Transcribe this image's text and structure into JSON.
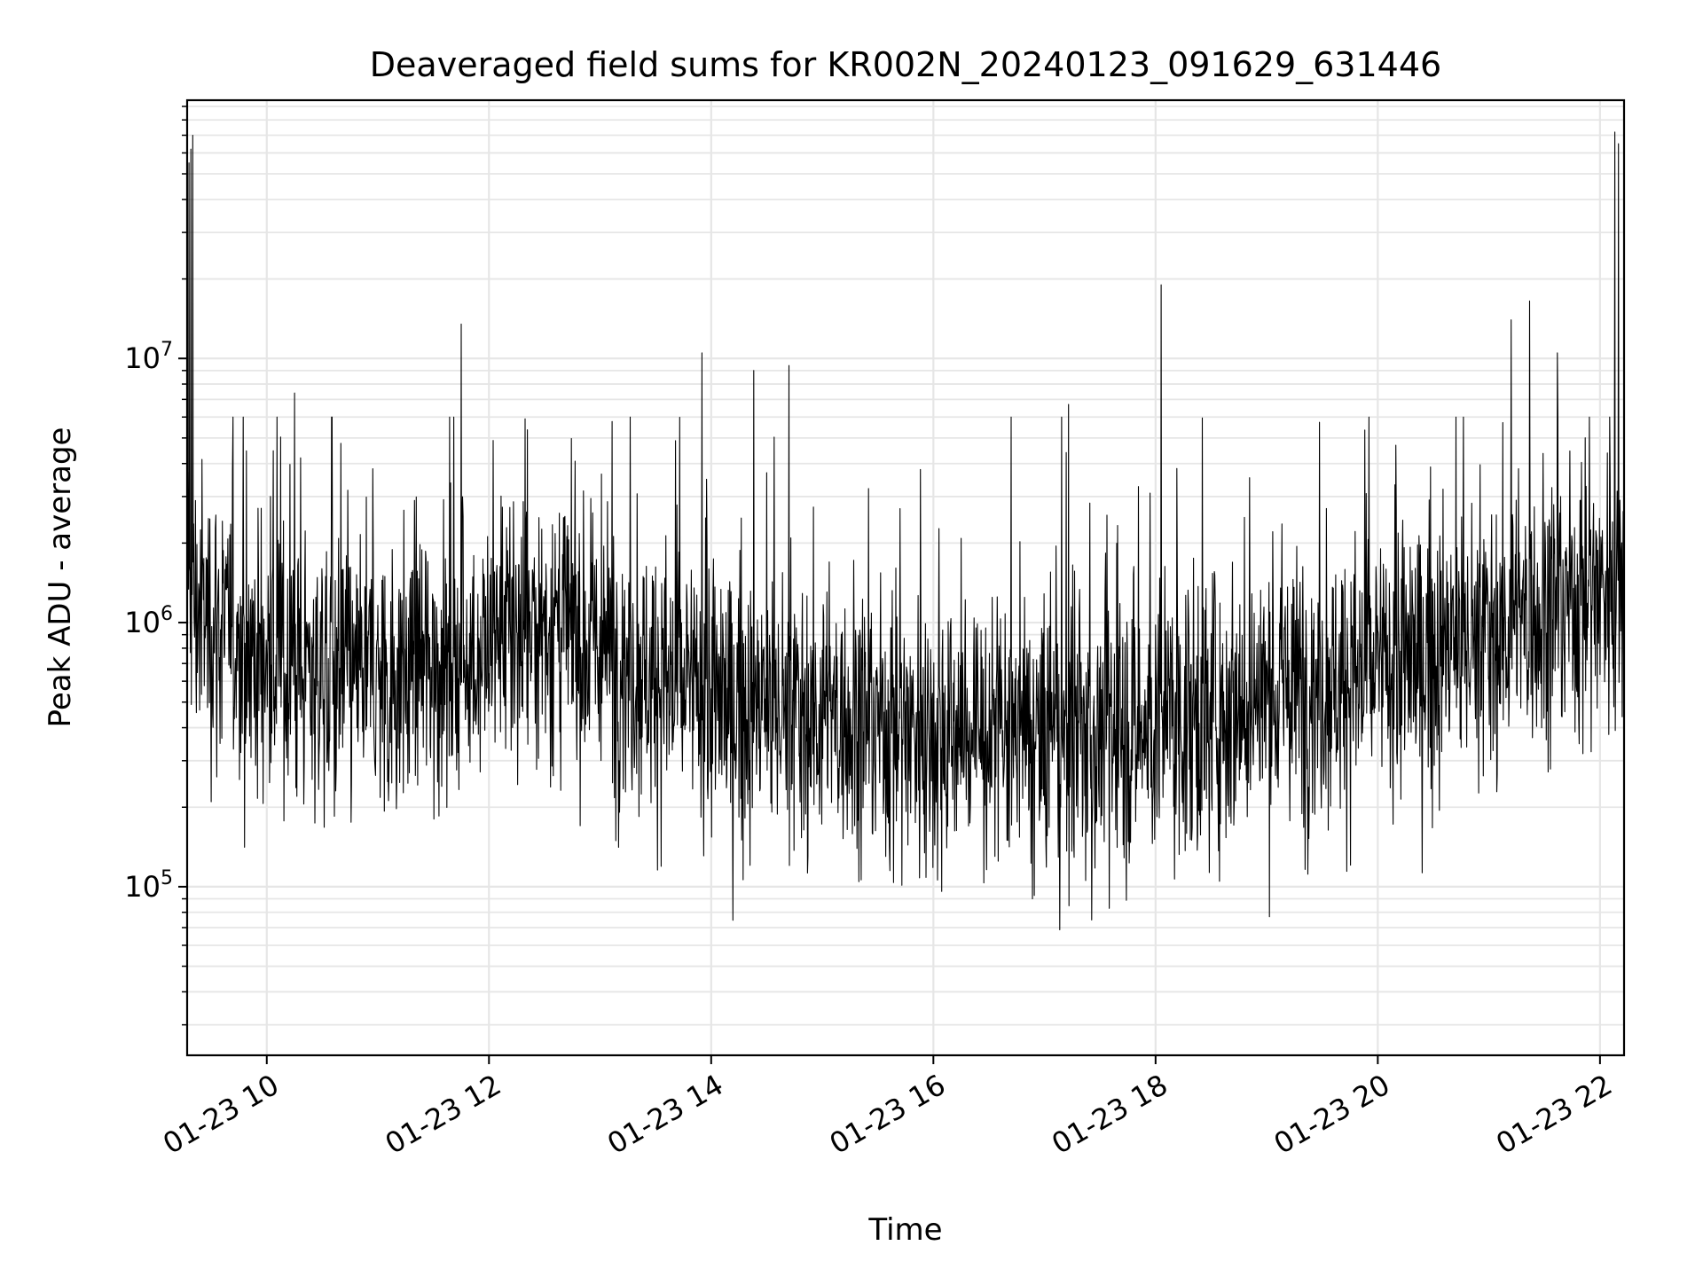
{
  "chart_data": {
    "type": "line",
    "title": "Deaveraged field sums for KR002N_20240123_091629_631446",
    "xlabel": "Time",
    "ylabel": "Peak ADU - average",
    "xlim": [
      "2024-01-23 09:17",
      "2024-01-23 22:13"
    ],
    "ylim": [
      23000,
      95000000
    ],
    "yscale": "log",
    "grid": true,
    "line_color": "#000000",
    "grid_color": "#e6e6e6",
    "x_ticks": [
      {
        "t": "2024-01-23 10:00",
        "label": "01-23 10"
      },
      {
        "t": "2024-01-23 12:00",
        "label": "01-23 12"
      },
      {
        "t": "2024-01-23 14:00",
        "label": "01-23 14"
      },
      {
        "t": "2024-01-23 16:00",
        "label": "01-23 16"
      },
      {
        "t": "2024-01-23 18:00",
        "label": "01-23 18"
      },
      {
        "t": "2024-01-23 20:00",
        "label": "01-23 20"
      },
      {
        "t": "2024-01-23 22:00",
        "label": "01-23 22"
      }
    ],
    "y_ticks": [
      {
        "value": 100000,
        "base": "10",
        "exp": "5"
      },
      {
        "value": 1000000,
        "base": "10",
        "exp": "6"
      },
      {
        "value": 10000000,
        "base": "10",
        "exp": "7"
      }
    ],
    "series": [
      {
        "sample_interval_minutes": 0.25,
        "baseline_trend": [
          {
            "t": "2024-01-23 09:17",
            "value": 1200000
          },
          {
            "t": "2024-01-23 10:00",
            "value": 700000
          },
          {
            "t": "2024-01-23 11:00",
            "value": 600000
          },
          {
            "t": "2024-01-23 12:00",
            "value": 800000
          },
          {
            "t": "2024-01-23 12:30",
            "value": 1000000
          },
          {
            "t": "2024-01-23 13:00",
            "value": 800000
          },
          {
            "t": "2024-01-23 14:00",
            "value": 500000
          },
          {
            "t": "2024-01-23 15:00",
            "value": 450000
          },
          {
            "t": "2024-01-23 16:00",
            "value": 400000
          },
          {
            "t": "2024-01-23 17:00",
            "value": 350000
          },
          {
            "t": "2024-01-23 18:00",
            "value": 400000
          },
          {
            "t": "2024-01-23 19:00",
            "value": 550000
          },
          {
            "t": "2024-01-23 20:00",
            "value": 650000
          },
          {
            "t": "2024-01-23 21:00",
            "value": 900000
          },
          {
            "t": "2024-01-23 22:13",
            "value": 1500000
          }
        ],
        "spikes": [
          {
            "t": "2024-01-23 09:18",
            "value": 55000000
          },
          {
            "t": "2024-01-23 09:19",
            "value": 62000000
          },
          {
            "t": "2024-01-23 09:20",
            "value": 70000000
          },
          {
            "t": "2024-01-23 10:15",
            "value": 7400000
          },
          {
            "t": "2024-01-23 10:35",
            "value": 6000000
          },
          {
            "t": "2024-01-23 11:45",
            "value": 13500000
          },
          {
            "t": "2024-01-23 13:55",
            "value": 10500000
          },
          {
            "t": "2024-01-23 14:23",
            "value": 9000000
          },
          {
            "t": "2024-01-23 14:42",
            "value": 9400000
          },
          {
            "t": "2024-01-23 17:13",
            "value": 6700000
          },
          {
            "t": "2024-01-23 18:03",
            "value": 19000000
          },
          {
            "t": "2024-01-23 21:12",
            "value": 14000000
          },
          {
            "t": "2024-01-23 21:22",
            "value": 16500000
          },
          {
            "t": "2024-01-23 21:37",
            "value": 10500000
          },
          {
            "t": "2024-01-23 22:08",
            "value": 72000000
          },
          {
            "t": "2024-01-23 22:10",
            "value": 65000000
          }
        ]
      }
    ]
  }
}
